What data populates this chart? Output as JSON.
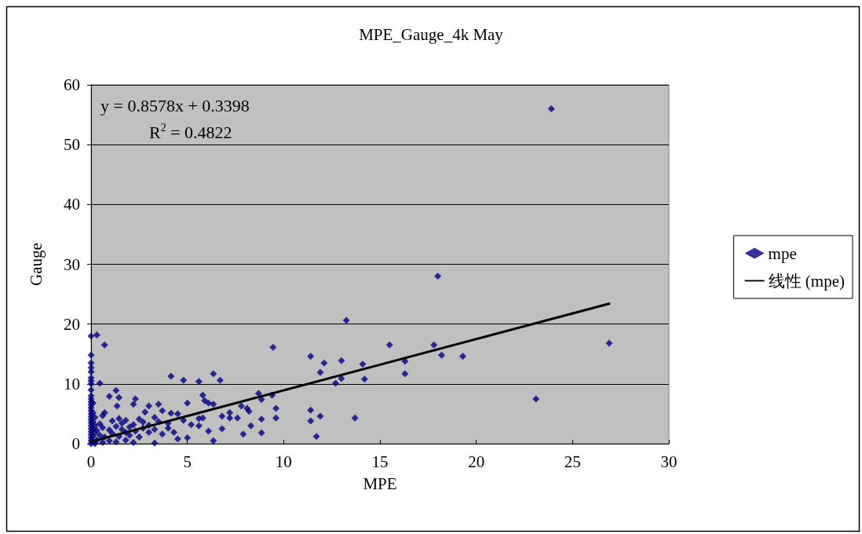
{
  "chart_data": {
    "type": "scatter",
    "title": "MPE_Gauge_4k May",
    "xlabel": "MPE",
    "ylabel": "Gauge",
    "xlim": [
      0,
      30
    ],
    "xticks": [
      0,
      5,
      10,
      15,
      20,
      25,
      30
    ],
    "ylim": [
      0,
      60
    ],
    "yticks": [
      0,
      10,
      20,
      30,
      40,
      50,
      60
    ],
    "grid": "y",
    "legend": "right",
    "annotations": [
      "y = 0.8578x + 0.3398",
      "R$^{2}$ = 0.4822"
    ],
    "series": [
      {
        "name": "mpe",
        "marker": "diamond",
        "color": "#000080",
        "x": [
          0,
          0,
          0,
          0,
          0,
          0,
          0,
          0,
          0,
          0,
          0,
          0,
          0,
          0,
          0,
          0,
          0,
          0,
          0,
          0,
          0,
          0,
          0,
          0,
          0,
          0,
          0.1,
          0.1,
          0.1,
          0.1,
          0.1,
          0.1,
          0.2,
          0.2,
          0.2,
          0.2,
          0.3,
          0.3,
          0.3,
          0.45,
          0.45,
          0.45,
          0.6,
          0.6,
          0.6,
          0.7,
          0.7,
          0.7,
          0.95,
          0.95,
          0.95,
          1.1,
          1.1,
          1.3,
          1.3,
          1.3,
          1.35,
          1.45,
          1.45,
          1.45,
          1.6,
          1.6,
          1.8,
          1.8,
          1.8,
          2.0,
          2.0,
          2.2,
          2.2,
          2.2,
          2.3,
          2.3,
          2.5,
          2.5,
          2.7,
          2.7,
          2.8,
          3.0,
          3.0,
          3.0,
          3.3,
          3.3,
          3.3,
          3.5,
          3.5,
          3.7,
          3.7,
          4.0,
          4.0,
          4.15,
          4.15,
          4.3,
          4.5,
          4.5,
          4.8,
          4.8,
          5.0,
          5.0,
          5.2,
          5.6,
          6.35,
          6.7,
          8.7,
          9.4,
          8.85,
          9.6,
          9.6,
          5.8,
          5.9,
          6.1,
          6.35,
          5.6,
          5.8,
          5.6,
          6.1,
          6.35,
          6.8,
          6.8,
          7.2,
          7.2,
          7.6,
          7.8,
          8.1,
          8.2,
          7.9,
          8.3,
          8.85,
          8.85,
          9.45,
          11.4,
          12.1,
          13.0,
          14.1,
          15.5,
          11.9,
          12.7,
          13.0,
          14.2,
          11.4,
          11.4,
          11.9,
          13.7,
          11.7,
          13.25,
          16.3,
          16.3,
          17.8,
          18.2,
          19.3,
          18,
          23.9,
          26.9,
          23.1
        ],
        "values": [
          0,
          0.5,
          1,
          1.5,
          2,
          2.5,
          3,
          3.5,
          4,
          4.5,
          5,
          5.5,
          6,
          6.5,
          7,
          7.5,
          8,
          9,
          10,
          10.5,
          11,
          12,
          12.7,
          13.5,
          14.8,
          18,
          0.3,
          1.2,
          2.4,
          3.6,
          5.2,
          6.8,
          0,
          1.8,
          3,
          4.4,
          0.6,
          2.2,
          18.2,
          1.4,
          3.3,
          10.1,
          0.2,
          2.7,
          4.7,
          1.1,
          5.2,
          16.5,
          0.5,
          2.3,
          7.9,
          1.7,
          3.8,
          0.3,
          2.9,
          8.9,
          6.3,
          1.2,
          4.2,
          7.7,
          2.4,
          3.4,
          0.6,
          1.9,
          3.9,
          1.4,
          2.8,
          0.2,
          3.2,
          6.6,
          2.1,
          7.5,
          1.1,
          4.1,
          2.6,
          3.6,
          5.3,
          1.9,
          3.1,
          6.3,
          0.1,
          2.4,
          4.4,
          3.7,
          6.6,
          1.6,
          5.5,
          2.6,
          3.4,
          5.1,
          11.3,
          1.9,
          0.8,
          5.0,
          3.9,
          10.6,
          1.0,
          6.8,
          3.2,
          10.4,
          11.7,
          10.6,
          8.4,
          8.1,
          7.4,
          5.9,
          4.3,
          8.1,
          7.2,
          6.8,
          6.6,
          4.2,
          4.3,
          3.0,
          2.1,
          0.5,
          4.6,
          2.5,
          5.2,
          4.3,
          4.3,
          6.3,
          5.9,
          5.4,
          1.6,
          3.0,
          4.1,
          1.8,
          16.1,
          14.6,
          13.5,
          13.9,
          13.3,
          16.5,
          11.9,
          10.1,
          10.9,
          10.8,
          5.6,
          3.8,
          4.6,
          4.3,
          1.2,
          20.6,
          13.8,
          11.7,
          16.5,
          14.8,
          14.6,
          28,
          56,
          16.8,
          7.5
        ]
      },
      {
        "name": "线性 (mpe)",
        "type": "line",
        "marker": "none",
        "color": "#000000",
        "x": [
          0,
          26.9
        ],
        "values": [
          0.34,
          23.41
        ]
      }
    ]
  }
}
